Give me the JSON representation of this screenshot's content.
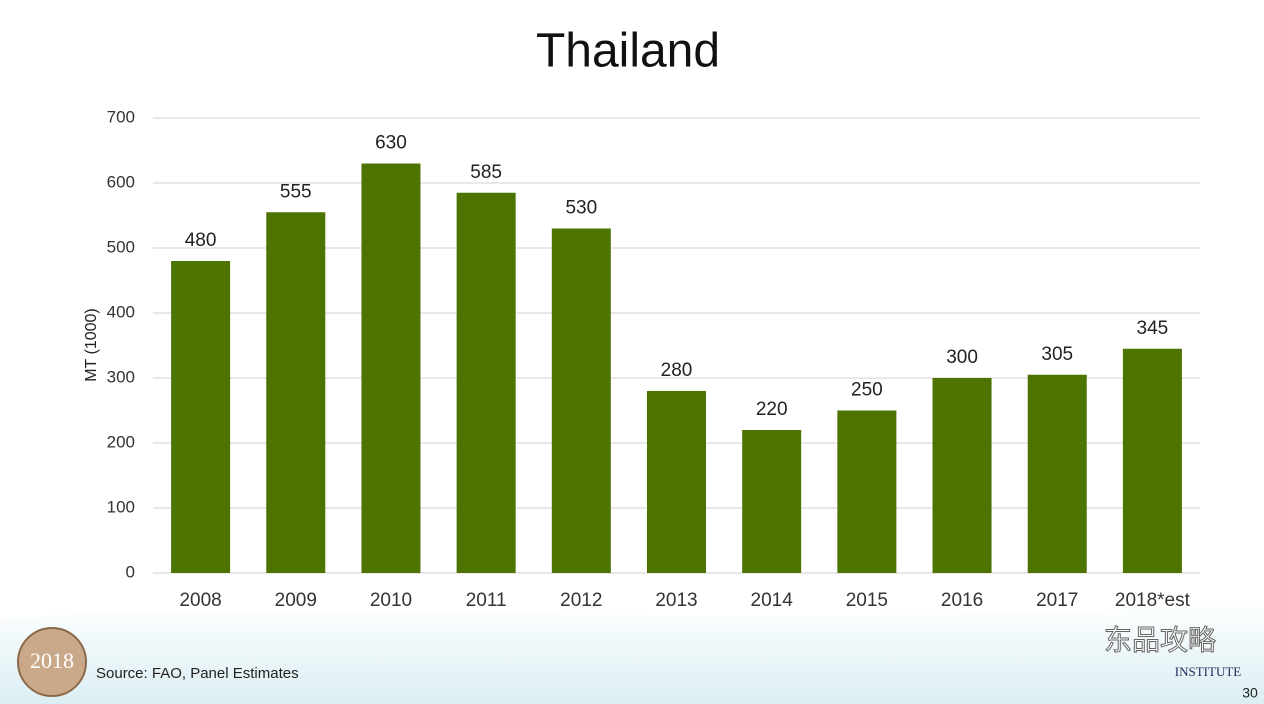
{
  "chart_data": {
    "type": "bar",
    "title": "Thailand",
    "y_label": "MT (1000)",
    "categories": [
      "2008",
      "2009",
      "2010",
      "2011",
      "2012",
      "2013",
      "2014",
      "2015",
      "2016",
      "2017",
      "2018*est"
    ],
    "values": [
      480,
      555,
      630,
      585,
      530,
      280,
      220,
      250,
      300,
      305,
      345
    ],
    "color": "#4d7300",
    "ylim": [
      0,
      700
    ],
    "yticks": [
      0,
      100,
      200,
      300,
      400,
      500,
      600,
      700
    ],
    "grid": true,
    "source": "Source: FAO, Panel Estimates",
    "page_number": "30",
    "footer_logo_left": "2018",
    "footer_logo_right": "INSTITUTE",
    "watermark": "东品攻略"
  }
}
